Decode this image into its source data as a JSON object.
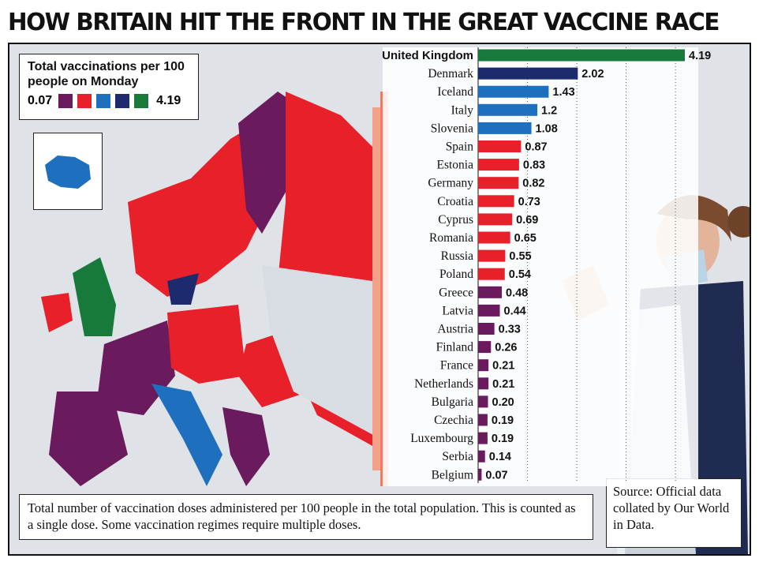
{
  "title": "HOW BRITAIN HIT THE FRONT IN THE GREAT VACCINE RACE",
  "legend": {
    "title": "Total vaccinations per 100 people on Monday",
    "min": "0.07",
    "max": "4.19",
    "colors": [
      "#6b1a5e",
      "#e8202a",
      "#1f6fbf",
      "#1c2b6e",
      "#177a3a"
    ]
  },
  "footnote": "Total number of vaccination doses administered per 100 people in the total population. This is counted as a single dose. Some vaccination regimes require multiple doses.",
  "source": "Source: Official data collated by Our World in Data.",
  "chart_data": {
    "type": "bar",
    "orientation": "horizontal",
    "title": "HOW BRITAIN HIT THE FRONT IN THE GREAT VACCINE RACE",
    "categories": [
      "United Kingdom",
      "Denmark",
      "Iceland",
      "Italy",
      "Slovenia",
      "Spain",
      "Estonia",
      "Germany",
      "Croatia",
      "Cyprus",
      "Romania",
      "Russia",
      "Poland",
      "Greece",
      "Latvia",
      "Austria",
      "Finland",
      "France",
      "Netherlands",
      "Bulgaria",
      "Czechia",
      "Luxembourg",
      "Serbia",
      "Belgium"
    ],
    "values": [
      4.19,
      2.02,
      1.43,
      1.2,
      1.08,
      0.87,
      0.83,
      0.82,
      0.73,
      0.69,
      0.65,
      0.55,
      0.54,
      0.48,
      0.44,
      0.33,
      0.26,
      0.21,
      0.21,
      0.2,
      0.19,
      0.19,
      0.14,
      0.07
    ],
    "value_labels": [
      "4.19",
      "2.02",
      "1.43",
      "1.2",
      "1.08",
      "0.87",
      "0.83",
      "0.82",
      "0.73",
      "0.69",
      "0.65",
      "0.55",
      "0.54",
      "0.48",
      "0.44",
      "0.33",
      "0.26",
      "0.21",
      "0.21",
      "0.20",
      "0.19",
      "0.19",
      "0.14",
      "0.07"
    ],
    "bar_colors": [
      "#177a3a",
      "#1c2b6e",
      "#1f6fbf",
      "#1f6fbf",
      "#1f6fbf",
      "#e8202a",
      "#e8202a",
      "#e8202a",
      "#e8202a",
      "#e8202a",
      "#e8202a",
      "#e8202a",
      "#e8202a",
      "#6b1a5e",
      "#6b1a5e",
      "#6b1a5e",
      "#6b1a5e",
      "#6b1a5e",
      "#6b1a5e",
      "#6b1a5e",
      "#6b1a5e",
      "#6b1a5e",
      "#6b1a5e",
      "#6b1a5e"
    ],
    "xlim": [
      0,
      4.19
    ],
    "grid": true,
    "xlabel": "",
    "ylabel": ""
  }
}
